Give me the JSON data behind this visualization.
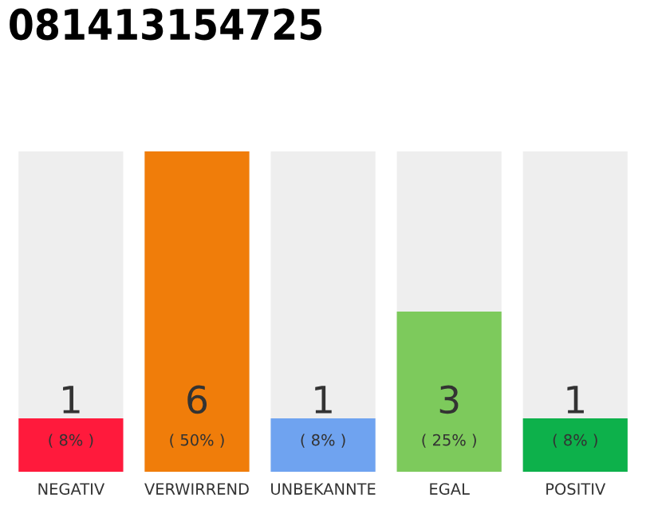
{
  "chart_data": {
    "type": "bar",
    "title": "081413154725",
    "categories": [
      "NEGATIV",
      "VERWIRREND",
      "UNBEKANNTE",
      "EGAL",
      "POSITIV"
    ],
    "values": [
      1,
      6,
      1,
      3,
      1
    ],
    "colors": [
      "#ff1a3c",
      "#f07d0a",
      "#6fa3f0",
      "#7dca5c",
      "#0db14b"
    ],
    "data_labels": true,
    "annotations": [
      "( 8% )",
      "( 50% )",
      "( 8% )",
      "( 25% )",
      "( 8% )"
    ],
    "grid": false,
    "legend": false
  }
}
